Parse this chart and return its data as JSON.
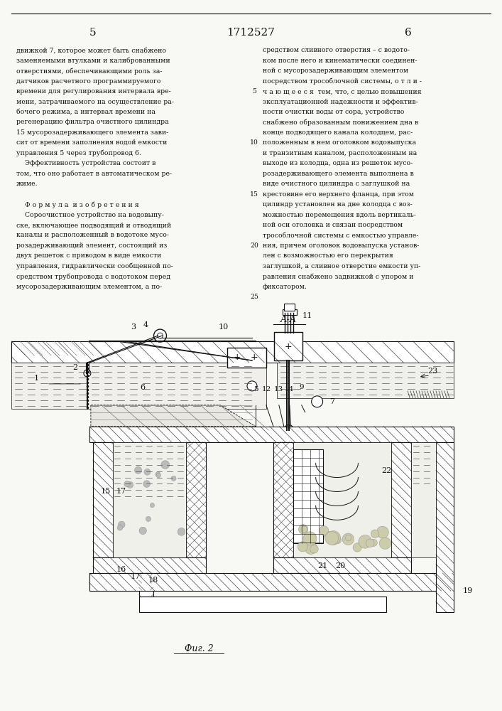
{
  "page_number_left": "5",
  "patent_number": "1712527",
  "page_number_right": "6",
  "bg": "#f8f8f4",
  "tc": "#111111",
  "lc": "#111111",
  "left_col": [
    "движкой 7, которое может быть снабжено",
    "заменяемыми втулками и калиброванными",
    "отверстиями, обеспечивающими роль за-",
    "датчиков расчетного программируемого",
    "времени для регулирования интервала вре-",
    "мени, затрачиваемого на осуществление ра-",
    "бочего режима, а интервал времени на",
    "регенерацию фильтра очистного цилиндра",
    "15 мусорозадерживающего элемента зави-",
    "сит от времени заполнения водой емкости",
    "управления 5 через трубопровод 6.",
    "    Эффективность устройства состоит в",
    "том, что оно работает в автоматическом ре-",
    "жиме.",
    "",
    "    Ф о р м у л а  и з о б р е т е н и я",
    "    Сороочистное устройство на водовыпу-",
    "ске, включающее подводящий и отводящий",
    "каналы и расположенный в водотоке мусо-",
    "розадерживающий элемент, состоящий из",
    "двух решеток с приводом в виде емкости",
    "управления, гидравлически сообщенной по-",
    "средством трубопровода с водотоком перед",
    "мусорозадерживающим элементом, а по-"
  ],
  "right_col": [
    "средством сливного отверстия – с водото-",
    "ком после него и кинематически соединен-",
    "ной с мусорозадерживающим элементом",
    "посредством трособлочной системы, о т л и -",
    "ч а ю щ е е с я  тем, что, с целью повышения",
    "эксплуатационной надежности и эффектив-",
    "ности очистки воды от сора, устройство",
    "снабжено образованным понижением дна в",
    "конце подводящего канала колодцем, рас-",
    "положенным в нем оголовком водовыпуска",
    "и транзитным каналом, расположенным на",
    "выходе из колодца, одна из решеток мусо-",
    "розадерживающего элемента выполнена в",
    "виде очистного цилиндра с заглушкой на",
    "крестовине его верхнего фланца, при этом",
    "цилиндр установлен на дне колодца с воз-",
    "можностью перемещения вдоль вертикаль-",
    "ной оси оголовка и связан посредством",
    "трособлочной системы с емкостью управле-",
    "ния, причем оголовок водовыпуска установ-",
    "лен с возможностью его перекрытия",
    "заглушкой, а сливное отверстие емкости уп-",
    "равления снабжено задвижкой с упором и",
    "фиксатором."
  ],
  "line_numbers": [
    5,
    10,
    15,
    20,
    25
  ],
  "line_number_rows": [
    4,
    9,
    14,
    19,
    24
  ],
  "fig_label": "Фиг. 2",
  "aa_label": "А-А"
}
